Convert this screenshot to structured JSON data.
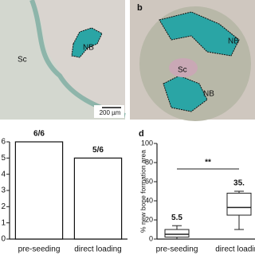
{
  "micrographs": {
    "left": {
      "tissue_label": "Sc",
      "bone_label": "NB",
      "scale_bar": "200 µm"
    },
    "right": {
      "panel_label": "b",
      "bone_labels": [
        "NB",
        "NB"
      ],
      "tissue_label": "Sc"
    }
  },
  "chart_data": [
    {
      "type": "bar",
      "categories": [
        "pre-seeding",
        "direct loading"
      ],
      "values": [
        6,
        5
      ],
      "value_labels": [
        "6/6",
        "5/6"
      ],
      "ylim": [
        0,
        6
      ],
      "yticks": [
        0,
        1,
        2,
        3,
        4,
        5,
        6
      ],
      "color": "#ffffff"
    },
    {
      "type": "box",
      "panel_label": "d",
      "ylabel": "% new bone formation area",
      "categories": [
        "pre-seeding",
        "direct loading"
      ],
      "boxes": [
        {
          "min": 0,
          "q1": 2,
          "median": 5,
          "q3": 10,
          "max": 14
        },
        {
          "min": 10,
          "q1": 25,
          "median": 33,
          "q3": 48,
          "max": 50
        }
      ],
      "mean_labels": [
        "5.5",
        "35."
      ],
      "significance": "**",
      "ylim": [
        0,
        100
      ],
      "yticks": [
        0,
        20,
        40,
        60,
        80,
        100
      ]
    }
  ]
}
